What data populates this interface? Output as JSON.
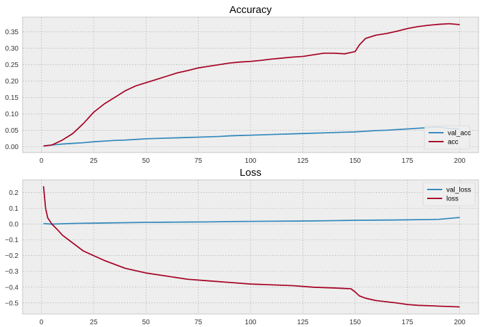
{
  "chart_data": [
    {
      "type": "line",
      "title": "Accuracy",
      "xlabel": "",
      "ylabel": "",
      "xlim": [
        -9,
        209
      ],
      "ylim": [
        -0.018,
        0.395
      ],
      "xticks": [
        0,
        25,
        50,
        75,
        100,
        125,
        150,
        175,
        200
      ],
      "yticks": [
        0.0,
        0.05,
        0.1,
        0.15,
        0.2,
        0.25,
        0.3,
        0.35
      ],
      "ytick_labels": [
        "0.00",
        "0.05",
        "0.10",
        "0.15",
        "0.20",
        "0.25",
        "0.30",
        "0.35"
      ],
      "grid": true,
      "legend_position": "bottom-right",
      "series": [
        {
          "name": "val_acc",
          "color": "#348ABD",
          "x": [
            1,
            5,
            10,
            15,
            20,
            25,
            30,
            35,
            40,
            45,
            50,
            55,
            60,
            65,
            70,
            75,
            80,
            85,
            90,
            95,
            100,
            105,
            110,
            115,
            120,
            125,
            130,
            135,
            140,
            145,
            150,
            155,
            160,
            165,
            170,
            175,
            180,
            185,
            190,
            195,
            200
          ],
          "y": [
            0.002,
            0.005,
            0.008,
            0.01,
            0.012,
            0.015,
            0.017,
            0.019,
            0.02,
            0.022,
            0.024,
            0.025,
            0.026,
            0.027,
            0.028,
            0.029,
            0.03,
            0.031,
            0.033,
            0.034,
            0.035,
            0.036,
            0.037,
            0.038,
            0.039,
            0.04,
            0.041,
            0.042,
            0.043,
            0.044,
            0.045,
            0.047,
            0.049,
            0.05,
            0.052,
            0.054,
            0.056,
            0.058,
            0.06,
            0.055,
            0.054
          ]
        },
        {
          "name": "acc",
          "color": "#A60628",
          "x": [
            1,
            5,
            10,
            15,
            20,
            25,
            30,
            35,
            40,
            45,
            50,
            55,
            60,
            65,
            70,
            75,
            80,
            85,
            90,
            95,
            100,
            105,
            110,
            115,
            120,
            125,
            130,
            135,
            140,
            145,
            150,
            152,
            155,
            160,
            165,
            170,
            175,
            180,
            185,
            190,
            195,
            200
          ],
          "y": [
            0.002,
            0.005,
            0.02,
            0.04,
            0.07,
            0.105,
            0.13,
            0.15,
            0.17,
            0.185,
            0.195,
            0.205,
            0.215,
            0.225,
            0.232,
            0.24,
            0.245,
            0.25,
            0.255,
            0.258,
            0.26,
            0.263,
            0.267,
            0.27,
            0.273,
            0.275,
            0.28,
            0.285,
            0.285,
            0.283,
            0.29,
            0.31,
            0.33,
            0.34,
            0.345,
            0.352,
            0.36,
            0.366,
            0.37,
            0.373,
            0.375,
            0.372
          ]
        }
      ]
    },
    {
      "type": "line",
      "title": "Loss",
      "xlabel": "",
      "ylabel": "",
      "xlim": [
        -9,
        209
      ],
      "ylim": [
        -0.57,
        0.28
      ],
      "xticks": [
        0,
        25,
        50,
        75,
        100,
        125,
        150,
        175,
        200
      ],
      "yticks": [
        0.2,
        0.1,
        0.0,
        -0.1,
        -0.2,
        -0.3,
        -0.4,
        -0.5
      ],
      "ytick_labels": [
        "0.2",
        "0.1",
        "0.0",
        "−0.1",
        "−0.2",
        "−0.3",
        "−0.4",
        "−0.5"
      ],
      "grid": true,
      "legend_position": "top-right",
      "series": [
        {
          "name": "val_loss",
          "color": "#348ABD",
          "x": [
            1,
            5,
            10,
            15,
            20,
            25,
            30,
            40,
            50,
            60,
            70,
            80,
            90,
            100,
            110,
            120,
            130,
            140,
            150,
            160,
            170,
            180,
            190,
            200
          ],
          "y": [
            0.003,
            0.0,
            0.002,
            0.004,
            0.005,
            0.006,
            0.007,
            0.009,
            0.011,
            0.012,
            0.013,
            0.014,
            0.016,
            0.017,
            0.018,
            0.019,
            0.02,
            0.022,
            0.024,
            0.025,
            0.026,
            0.028,
            0.03,
            0.042
          ]
        },
        {
          "name": "loss",
          "color": "#A60628",
          "x": [
            1,
            2,
            3,
            5,
            8,
            10,
            15,
            20,
            25,
            30,
            35,
            40,
            45,
            50,
            60,
            70,
            80,
            90,
            100,
            110,
            120,
            130,
            140,
            148,
            150,
            152,
            155,
            160,
            170,
            175,
            180,
            190,
            200
          ],
          "y": [
            0.24,
            0.1,
            0.04,
            0.0,
            -0.04,
            -0.07,
            -0.12,
            -0.17,
            -0.2,
            -0.23,
            -0.255,
            -0.28,
            -0.295,
            -0.31,
            -0.33,
            -0.35,
            -0.36,
            -0.37,
            -0.38,
            -0.385,
            -0.39,
            -0.4,
            -0.405,
            -0.41,
            -0.43,
            -0.455,
            -0.47,
            -0.485,
            -0.5,
            -0.51,
            -0.515,
            -0.52,
            -0.525
          ]
        }
      ]
    }
  ]
}
